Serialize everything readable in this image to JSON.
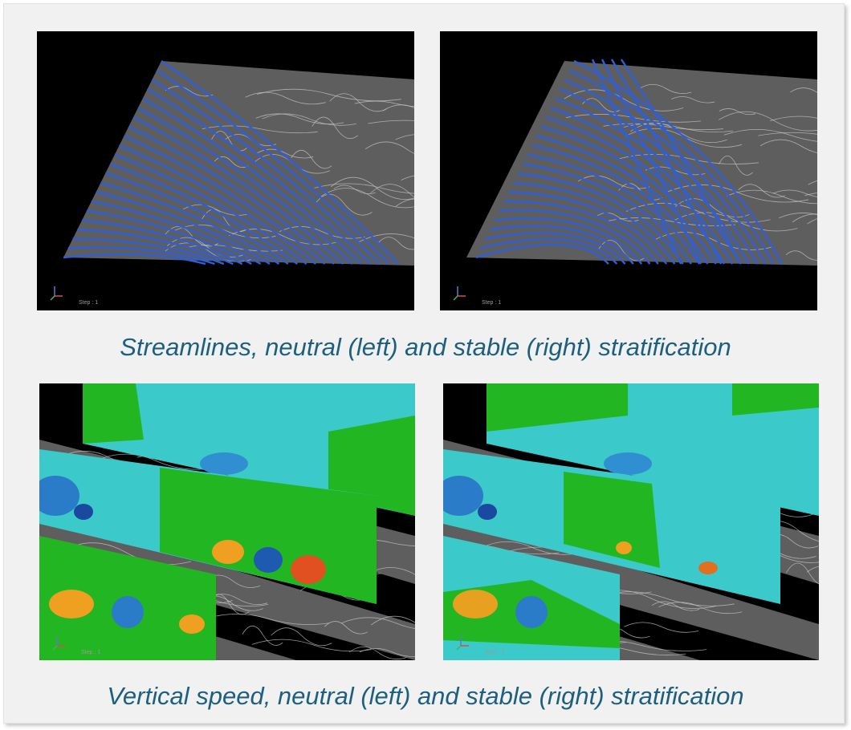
{
  "panels": [
    {
      "images": [
        {
          "step_label": "Step : 1"
        },
        {
          "step_label": "Step : 1"
        }
      ],
      "caption": "Streamlines, neutral (left) and stable (right) stratification"
    },
    {
      "images": [
        {
          "step_label": "Step : 1"
        },
        {
          "step_label": "Step : 1"
        }
      ],
      "caption": "Vertical speed, neutral (left) and stable (right) stratification"
    }
  ]
}
